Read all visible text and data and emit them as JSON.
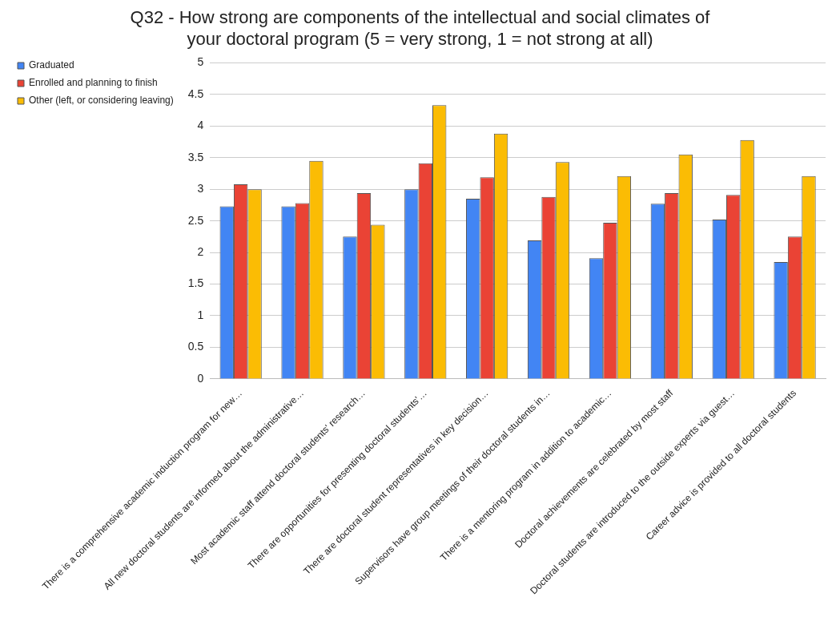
{
  "chart_data": {
    "type": "bar",
    "title": "Q32 - How strong are components of the intellectual and social climates of your doctoral program (5 = very strong, 1 = not strong at all)",
    "categories": [
      "There is a comprehensive academic induction program for new…",
      "All new doctoral students are informed about the administrative…",
      "Most academic staff attend doctoral students' research…",
      "There are opportunities for presenting doctoral students'…",
      "There are doctoral student representatives in key decision…",
      "Supervisors have group meetings of their doctoral students in…",
      "There is a mentoring program in addition to academic…",
      "Doctoral achievements are celebrated by most staff",
      "Doctoral students are introduced to the outside experts via guest…",
      "Career advice is provided to all doctoral students"
    ],
    "series": [
      {
        "name": "Graduated",
        "color": "#4285f4",
        "values": [
          2.73,
          2.73,
          2.25,
          3.0,
          2.85,
          2.19,
          1.91,
          2.77,
          2.52,
          1.85
        ]
      },
      {
        "name": "Enrolled and planning to finish",
        "color": "#ea4335",
        "values": [
          3.08,
          2.78,
          2.94,
          3.41,
          3.19,
          2.88,
          2.47,
          2.94,
          2.91,
          2.25
        ]
      },
      {
        "name": "Other (left, or considering leaving)",
        "color": "#fbbc04",
        "values": [
          3.0,
          3.45,
          2.44,
          4.33,
          3.88,
          3.43,
          3.21,
          3.55,
          3.78,
          3.21
        ]
      }
    ],
    "ylim": [
      0,
      5
    ],
    "yticks": [
      0,
      0.5,
      1,
      1.5,
      2,
      2.5,
      3,
      3.5,
      4,
      4.5,
      5
    ],
    "grid": "y",
    "legend": "top left"
  }
}
